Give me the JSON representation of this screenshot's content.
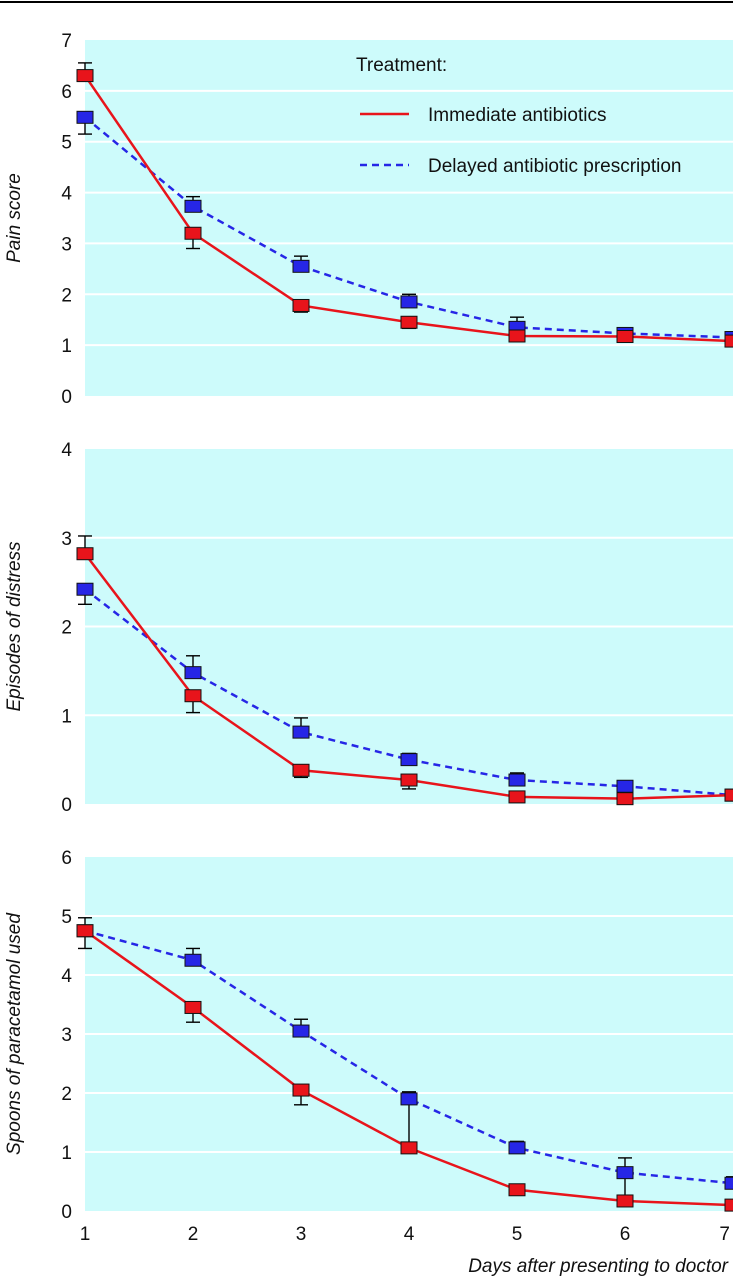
{
  "figure": {
    "xlabel": "Days after presenting to doctor",
    "legend_title": "Treatment:"
  },
  "chart_data": [
    {
      "type": "line",
      "ylabel": "Pain score",
      "ylim": [
        0,
        7
      ],
      "yticks": [
        0,
        1,
        2,
        3,
        4,
        5,
        6,
        7
      ],
      "x": [
        1,
        2,
        3,
        4,
        5,
        6,
        7
      ],
      "xlim": [
        1,
        7
      ],
      "grid": "horizontal",
      "legend_placement": "top-right",
      "series": [
        {
          "name": "Immediate antibiotics",
          "color": "#e8141b",
          "dash": "solid",
          "values": [
            6.3,
            3.2,
            1.78,
            1.45,
            1.18,
            1.17,
            1.08
          ],
          "err_upper": [
            6.55,
            3.25,
            1.82,
            1.5,
            1.22,
            1.22,
            1.12
          ],
          "err_lower": [
            6.3,
            2.9,
            1.65,
            1.33,
            1.18,
            1.17,
            1.02
          ]
        },
        {
          "name": "Delayed antibiotic prescription",
          "color": "#2626e6",
          "dash": "dashed",
          "values": [
            5.48,
            3.73,
            2.55,
            1.85,
            1.35,
            1.23,
            1.15
          ],
          "err_upper": [
            5.48,
            3.92,
            2.75,
            2.0,
            1.55,
            1.3,
            1.25
          ],
          "err_lower": [
            5.15,
            3.73,
            2.55,
            1.85,
            1.35,
            1.23,
            1.15
          ]
        }
      ]
    },
    {
      "type": "line",
      "ylabel": "Episodes of distress",
      "ylim": [
        0,
        4
      ],
      "yticks": [
        0,
        1,
        2,
        3,
        4
      ],
      "x": [
        1,
        2,
        3,
        4,
        5,
        6,
        7
      ],
      "xlim": [
        1,
        7
      ],
      "grid": "horizontal",
      "series": [
        {
          "name": "Immediate antibiotics",
          "color": "#e8141b",
          "dash": "solid",
          "values": [
            2.82,
            1.22,
            0.38,
            0.27,
            0.08,
            0.06,
            0.1
          ],
          "err_upper": [
            3.02,
            1.22,
            0.38,
            0.27,
            0.08,
            0.06,
            0.1
          ],
          "err_lower": [
            2.82,
            1.03,
            0.3,
            0.17,
            0.08,
            0.06,
            0.1
          ]
        },
        {
          "name": "Delayed antibiotic prescription",
          "color": "#2626e6",
          "dash": "dashed",
          "values": [
            2.42,
            1.48,
            0.81,
            0.5,
            0.27,
            0.2,
            0.1
          ],
          "err_upper": [
            2.42,
            1.67,
            0.97,
            0.57,
            0.35,
            0.25,
            0.12
          ],
          "err_lower": [
            2.25,
            1.48,
            0.81,
            0.5,
            0.27,
            0.2,
            0.1
          ]
        }
      ]
    },
    {
      "type": "line",
      "ylabel": "Spoons of paracetamol used",
      "ylim": [
        0,
        6
      ],
      "yticks": [
        0,
        1,
        2,
        3,
        4,
        5,
        6
      ],
      "x": [
        1,
        2,
        3,
        4,
        5,
        6,
        7
      ],
      "xticks": [
        1,
        2,
        3,
        4,
        5,
        6,
        7
      ],
      "xlim": [
        1,
        7
      ],
      "grid": "horizontal",
      "series": [
        {
          "name": "Immediate antibiotics",
          "color": "#e8141b",
          "dash": "solid",
          "values": [
            4.75,
            3.45,
            2.05,
            1.07,
            0.36,
            0.17,
            0.1
          ],
          "err_upper": [
            4.75,
            3.45,
            2.05,
            1.07,
            0.36,
            0.17,
            0.1
          ],
          "err_lower": [
            4.45,
            3.2,
            1.8,
            1.07,
            0.36,
            0.17,
            0.1
          ]
        },
        {
          "name": "Delayed antibiotic prescription",
          "color": "#2626e6",
          "dash": "dashed",
          "values": [
            4.75,
            4.25,
            3.05,
            1.9,
            1.07,
            0.65,
            0.47
          ],
          "err_upper": [
            4.97,
            4.45,
            3.25,
            2.02,
            1.18,
            0.9,
            0.58
          ],
          "err_lower": [
            4.75,
            4.25,
            3.05,
            1.07,
            1.07,
            0.17,
            0.47
          ]
        }
      ]
    }
  ]
}
